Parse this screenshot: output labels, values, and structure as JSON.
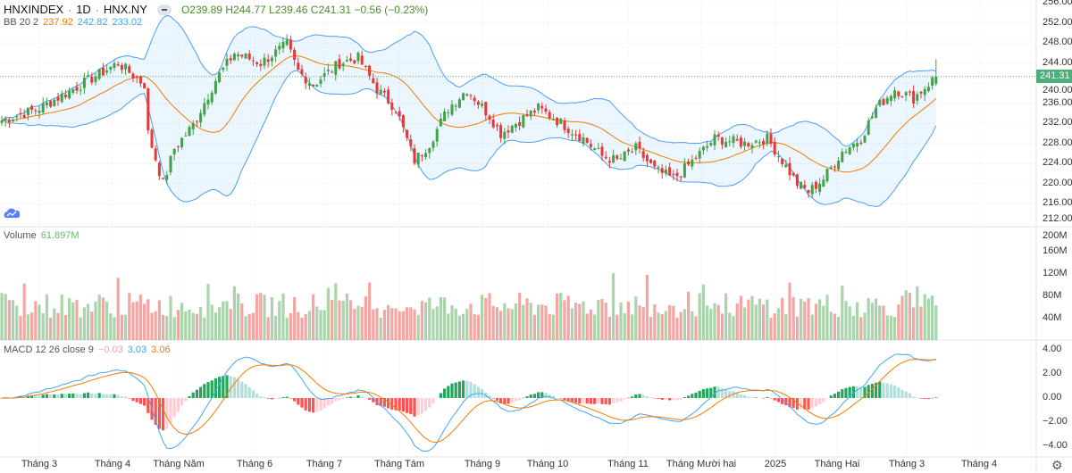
{
  "header": {
    "symbol": "HNXINDEX",
    "interval": "1D",
    "exchange": "HNX.NY",
    "open": "O239.89",
    "high": "H244.77",
    "low": "L239.46",
    "close": "C241.31",
    "change": "−0.56 (−0.23%)"
  },
  "bb_legend": {
    "name": "BB 20 2",
    "basis": "237.92",
    "upper": "242.82",
    "lower": "233.02"
  },
  "volume_legend": {
    "name": "Volume",
    "value": "61.897M"
  },
  "macd_legend": {
    "name": "MACD 12 26 close 9",
    "hist": "−0.03",
    "macd": "3.03",
    "signal": "3.06"
  },
  "price_tag": "241.31",
  "colors": {
    "up": "#43a047",
    "down": "#e53935",
    "bb_line": "#4a9ff5",
    "basis": "#f57c00",
    "macd": "#42a5f5",
    "signal": "#f57c00"
  },
  "chart_data": {
    "type": "candlestick",
    "price_ticks": [
      "256.00",
      "252.00",
      "248.00",
      "244.00",
      "240.00",
      "236.00",
      "232.00",
      "228.00",
      "224.00",
      "220.00",
      "216.00",
      "212.00"
    ],
    "volume_ticks": [
      "200M",
      "160M",
      "120M",
      "80M",
      "40M"
    ],
    "macd_ticks": [
      "4.00",
      "2.00",
      "0.00",
      "−2.00",
      "−4.00"
    ],
    "time_labels": [
      "Tháng 3",
      "Tháng 4",
      "Tháng Năm",
      "Tháng 6",
      "Tháng 7",
      "Tháng Tám",
      "Tháng 9",
      "Tháng 10",
      "Tháng 11",
      "Tháng Mười hai",
      "2025",
      "Tháng Hai",
      "Tháng 3",
      "Tháng 4"
    ],
    "price_range": [
      212,
      256
    ],
    "volume_range": [
      0,
      200
    ],
    "macd_range": [
      -4.5,
      4.5
    ],
    "close_anchors": [
      [
        0,
        232.6
      ],
      [
        10,
        235
      ],
      [
        19,
        238.8
      ],
      [
        31,
        244
      ],
      [
        38,
        239.7
      ],
      [
        39,
        230
      ],
      [
        43,
        220
      ],
      [
        46,
        227
      ],
      [
        51,
        231.7
      ],
      [
        57,
        240.6
      ],
      [
        62,
        246
      ],
      [
        69,
        244
      ],
      [
        76,
        247.7
      ],
      [
        79,
        242.3
      ],
      [
        83,
        239.7
      ],
      [
        90,
        244
      ],
      [
        95,
        245
      ],
      [
        100,
        238.8
      ],
      [
        105,
        235
      ],
      [
        110,
        224.6
      ],
      [
        114,
        228
      ],
      [
        119,
        235
      ],
      [
        124,
        238.8
      ],
      [
        130,
        233.5
      ],
      [
        133,
        230
      ],
      [
        138,
        232.6
      ],
      [
        143,
        235
      ],
      [
        148,
        232.6
      ],
      [
        155,
        229
      ],
      [
        160,
        225.5
      ],
      [
        164,
        224.6
      ],
      [
        169,
        227
      ],
      [
        174,
        222.8
      ],
      [
        179,
        221
      ],
      [
        183,
        223.7
      ],
      [
        190,
        229
      ],
      [
        198,
        228
      ],
      [
        204,
        229
      ],
      [
        208,
        224.6
      ],
      [
        212,
        220
      ],
      [
        215,
        218.4
      ],
      [
        219,
        221
      ],
      [
        224,
        226.4
      ],
      [
        229,
        229
      ],
      [
        233,
        235
      ],
      [
        238,
        238.8
      ],
      [
        243,
        237
      ],
      [
        248,
        240.6
      ],
      [
        249,
        241.31
      ]
    ],
    "last_bar": {
      "open": 239.89,
      "high": 244.77,
      "low": 239.46,
      "close": 241.31,
      "volume_m": 61.897
    }
  }
}
